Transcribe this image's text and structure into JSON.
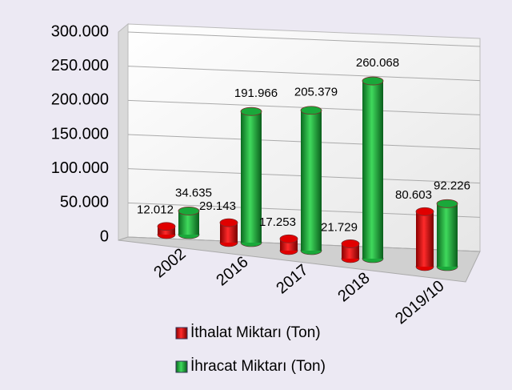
{
  "chart_data": {
    "type": "bar",
    "categories": [
      "2002",
      "2016",
      "2017",
      "2018",
      "2019/10"
    ],
    "series": [
      {
        "name": "İthalat Miktarı (Ton)",
        "color": "#e00000",
        "values": [
          12012,
          29143,
          17253,
          21729,
          80603
        ],
        "value_labels": [
          "12.012",
          "29.143",
          "17.253",
          "21.729",
          "80.603"
        ]
      },
      {
        "name": "İhracat Miktarı (Ton)",
        "color": "#1aa83a",
        "values": [
          34635,
          191966,
          205379,
          260068,
          92226
        ],
        "value_labels": [
          "34.635",
          "191.966",
          "205.379",
          "260.068",
          "92.226"
        ]
      }
    ],
    "ylim": [
      0,
      300000
    ],
    "yticks": [
      {
        "value": 0,
        "label": "0"
      },
      {
        "value": 50000,
        "label": "50.000"
      },
      {
        "value": 100000,
        "label": "100.000"
      },
      {
        "value": 150000,
        "label": "150.000"
      },
      {
        "value": 200000,
        "label": "200.000"
      },
      {
        "value": 250000,
        "label": "250.000"
      },
      {
        "value": 300000,
        "label": "300.000"
      }
    ],
    "grid": true,
    "legend": "bottom"
  }
}
